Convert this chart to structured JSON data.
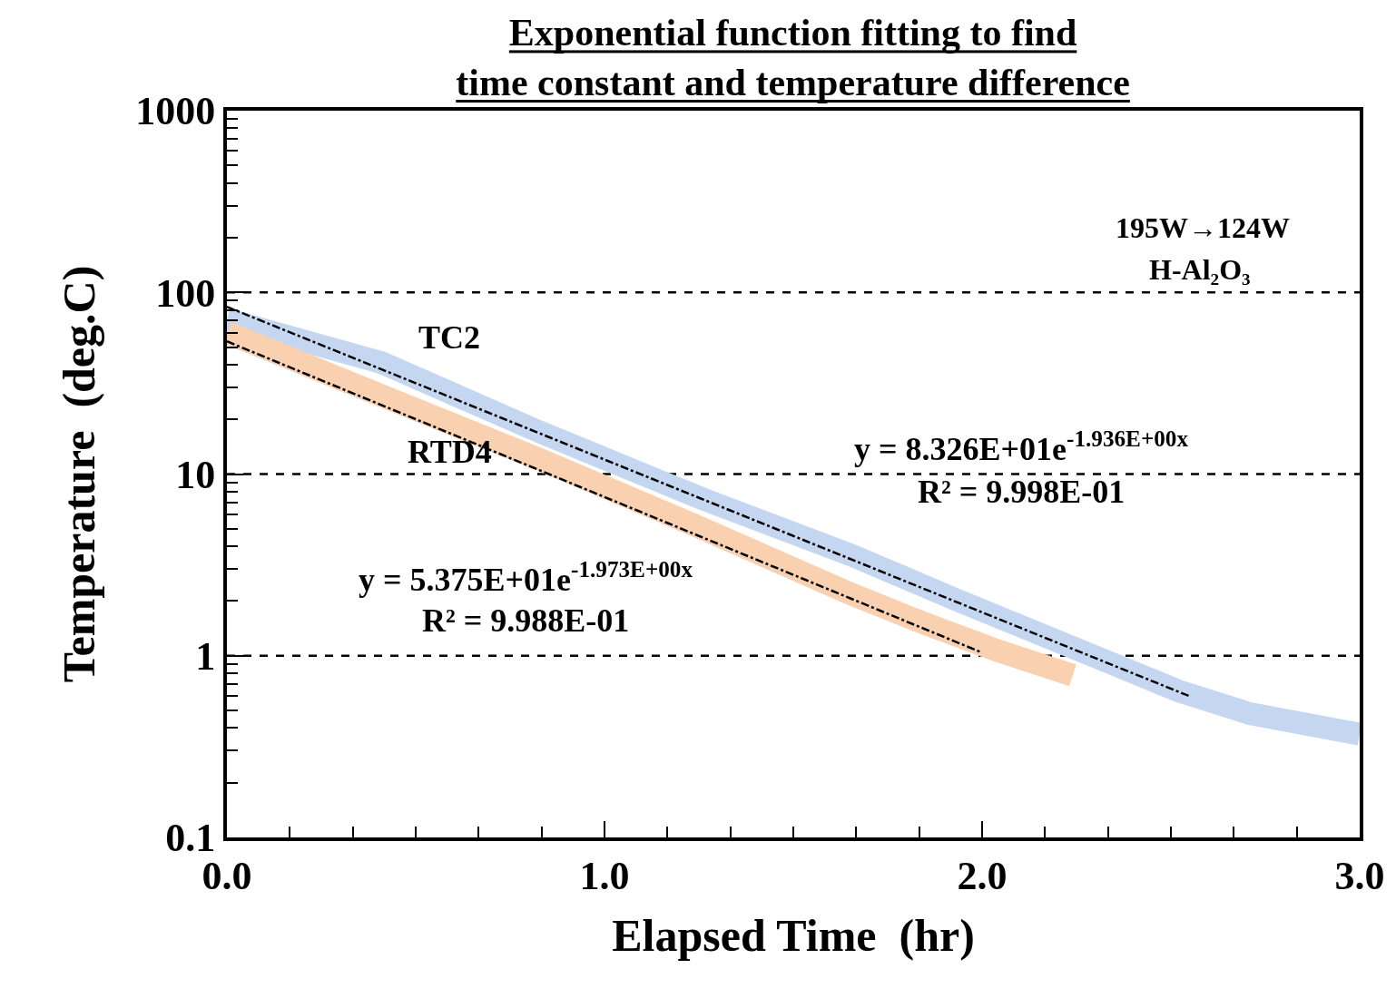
{
  "chart_data": {
    "type": "line",
    "title": "Exponential function fitting to find\ntime constant and temperature difference",
    "xlabel": "Elapsed Time  (hr)",
    "ylabel": "Temperature  (deg.C)",
    "annotations": [
      "195W→124W",
      "H-Al₂O₃",
      "y = 8.326E+01e$^{-1.936E+00x}$",
      "R² = 9.998E-01",
      "y = 5.375E+01e$^{-1.973E+00x}$",
      "R² = 9.988E-01"
    ],
    "x": [
      0,
      0.41,
      0.83,
      1.26,
      1.65,
      1.94,
      2.32,
      2.52,
      2.71,
      3.0
    ],
    "series": [
      {
        "name": "TC2",
        "color": "#c5d7f0",
        "values": [
          71,
          41,
          17,
          7.3,
          3.6,
          2.0,
          0.95,
          0.64,
          0.48,
          0.37
        ]
      },
      {
        "name": "RTD4",
        "color": "#f9d1b1",
        "x": [
          0,
          0.41,
          0.83,
          1.26,
          1.65,
          1.85,
          2.04,
          2.24
        ],
        "values": [
          60,
          27,
          12,
          5.0,
          2.2,
          1.5,
          1.07,
          0.78
        ]
      },
      {
        "type": "line",
        "color": "#000000",
        "line_style": "dashed",
        "x": [
          0,
          2.55
        ],
        "values": [
          83.26,
          0.598
        ]
      },
      {
        "type": "line",
        "color": "#000000",
        "line_style": "dashed",
        "x": [
          0,
          2.0
        ],
        "values": [
          53.75,
          1.04
        ]
      }
    ],
    "log": "y",
    "xlim": [
      0,
      3.0
    ],
    "ylim": [
      0.1,
      1000
    ],
    "xticks": [
      {
        "value": 0,
        "label": "0.0"
      },
      {
        "value": 1,
        "label": "1.0"
      },
      {
        "value": 2,
        "label": "2.0"
      },
      {
        "value": 3,
        "label": "3.0"
      }
    ],
    "yticks": [
      0.1,
      1,
      10,
      100,
      1000
    ],
    "ref_lines": [
      {
        "axis": "y",
        "value": 1,
        "line_style": "dashed",
        "color": "#000000"
      },
      {
        "axis": "y",
        "value": 10,
        "line_style": "dashed",
        "color": "#000000"
      },
      {
        "axis": "y",
        "value": 100,
        "line_style": "dashed",
        "color": "#000000"
      }
    ],
    "grid": false,
    "legend": false
  }
}
